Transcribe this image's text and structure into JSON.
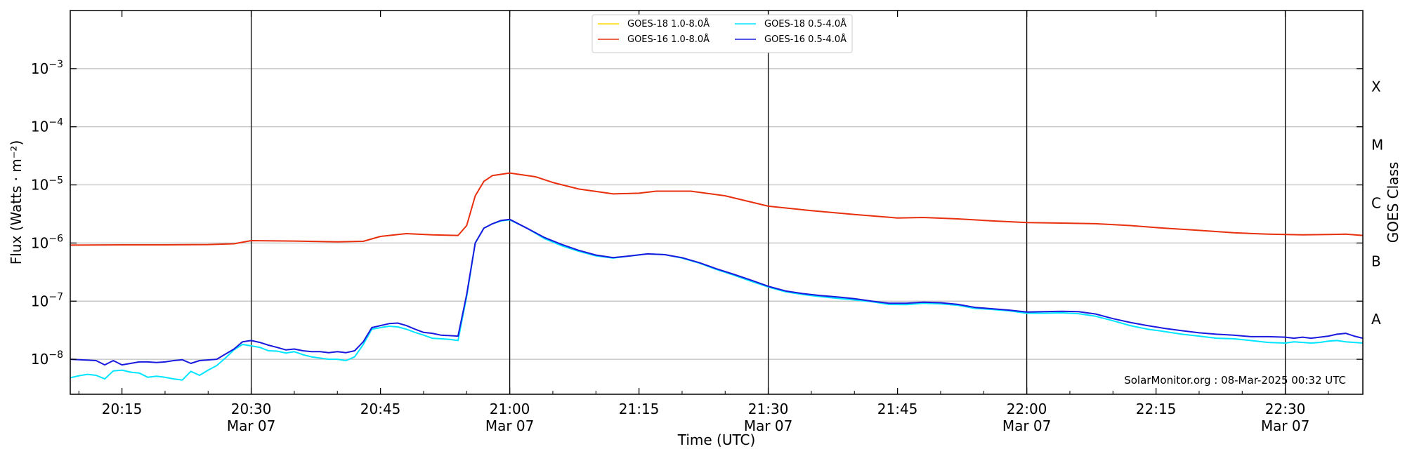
{
  "chart_data": {
    "type": "line",
    "xlabel": "Time (UTC)",
    "ylabel": "Flux (Watts · m⁻²)",
    "y2label": "GOES Class",
    "yscale": "log",
    "ylim": [
      2.5e-09,
      0.01
    ],
    "xlim": [
      "20:09",
      "22:39"
    ],
    "grid": "horizontal at decades",
    "legend_placement": "top-center",
    "credit": "SolarMonitor.org : 08-Mar-2025 00:32 UTC",
    "x_ticks": [
      {
        "time": "20:15",
        "date": ""
      },
      {
        "time": "20:30",
        "date": "Mar 07"
      },
      {
        "time": "20:45",
        "date": ""
      },
      {
        "time": "21:00",
        "date": "Mar 07"
      },
      {
        "time": "21:15",
        "date": ""
      },
      {
        "time": "21:30",
        "date": "Mar 07"
      },
      {
        "time": "21:45",
        "date": ""
      },
      {
        "time": "22:00",
        "date": "Mar 07"
      },
      {
        "time": "22:15",
        "date": ""
      },
      {
        "time": "22:30",
        "date": "Mar 07"
      }
    ],
    "y_ticks": [
      {
        "value": 1e-08,
        "base": "10",
        "exp": "−8"
      },
      {
        "value": 1e-07,
        "base": "10",
        "exp": "−7"
      },
      {
        "value": 1e-06,
        "base": "10",
        "exp": "−6"
      },
      {
        "value": 1e-05,
        "base": "10",
        "exp": "−5"
      },
      {
        "value": 0.0001,
        "base": "10",
        "exp": "−4"
      },
      {
        "value": 0.001,
        "base": "10",
        "exp": "−3"
      }
    ],
    "class_labels": [
      {
        "label": "A",
        "value": 1e-08
      },
      {
        "label": "B",
        "value": 1e-07
      },
      {
        "label": "C",
        "value": 1e-06
      },
      {
        "label": "M",
        "value": 1e-05
      },
      {
        "label": "X",
        "value": 0.0001
      }
    ],
    "series": [
      {
        "name": "GOES-18 1.0-8.0Å",
        "color": "#ffd700",
        "points": []
      },
      {
        "name": "GOES-16 1.0-8.0Å",
        "color": "#e8300f",
        "points": [
          [
            "20:09",
            9.2e-07
          ],
          [
            "20:15",
            9.3e-07
          ],
          [
            "20:20",
            9.3e-07
          ],
          [
            "20:25",
            9.4e-07
          ],
          [
            "20:28",
            9.7e-07
          ],
          [
            "20:30",
            1.1e-06
          ],
          [
            "20:35",
            1.08e-06
          ],
          [
            "20:40",
            1.05e-06
          ],
          [
            "20:43",
            1.07e-06
          ],
          [
            "20:45",
            1.3e-06
          ],
          [
            "20:48",
            1.45e-06
          ],
          [
            "20:51",
            1.38e-06
          ],
          [
            "20:54",
            1.35e-06
          ],
          [
            "20:55",
            2e-06
          ],
          [
            "20:56",
            6.5e-06
          ],
          [
            "20:57",
            1.15e-05
          ],
          [
            "20:58",
            1.45e-05
          ],
          [
            "21:00",
            1.6e-05
          ],
          [
            "21:03",
            1.38e-05
          ],
          [
            "21:05",
            1.1e-05
          ],
          [
            "21:08",
            8.5e-06
          ],
          [
            "21:12",
            7e-06
          ],
          [
            "21:15",
            7.2e-06
          ],
          [
            "21:17",
            7.8e-06
          ],
          [
            "21:21",
            7.8e-06
          ],
          [
            "21:25",
            6.5e-06
          ],
          [
            "21:30",
            4.3e-06
          ],
          [
            "21:35",
            3.6e-06
          ],
          [
            "21:40",
            3.1e-06
          ],
          [
            "21:45",
            2.7e-06
          ],
          [
            "21:48",
            2.75e-06
          ],
          [
            "21:52",
            2.6e-06
          ],
          [
            "21:56",
            2.4e-06
          ],
          [
            "22:00",
            2.25e-06
          ],
          [
            "22:04",
            2.2e-06
          ],
          [
            "22:08",
            2.15e-06
          ],
          [
            "22:12",
            2e-06
          ],
          [
            "22:16",
            1.8e-06
          ],
          [
            "22:20",
            1.65e-06
          ],
          [
            "22:24",
            1.5e-06
          ],
          [
            "22:28",
            1.42e-06
          ],
          [
            "22:32",
            1.38e-06
          ],
          [
            "22:35",
            1.4e-06
          ],
          [
            "22:37",
            1.42e-06
          ],
          [
            "22:39",
            1.35e-06
          ]
        ]
      },
      {
        "name": "GOES-18 0.5-4.0Å",
        "color": "#00e5ff",
        "points": [
          [
            "20:09",
            4.8e-09
          ],
          [
            "20:10",
            5.2e-09
          ],
          [
            "20:11",
            5.5e-09
          ],
          [
            "20:12",
            5.3e-09
          ],
          [
            "20:13",
            4.6e-09
          ],
          [
            "20:14",
            6.3e-09
          ],
          [
            "20:15",
            6.5e-09
          ],
          [
            "20:16",
            6e-09
          ],
          [
            "20:17",
            5.8e-09
          ],
          [
            "20:18",
            4.9e-09
          ],
          [
            "20:19",
            5.1e-09
          ],
          [
            "20:20",
            4.9e-09
          ],
          [
            "20:21",
            4.6e-09
          ],
          [
            "20:22",
            4.4e-09
          ],
          [
            "20:23",
            6.2e-09
          ],
          [
            "20:24",
            5.3e-09
          ],
          [
            "20:25",
            6.5e-09
          ],
          [
            "20:26",
            7.8e-09
          ],
          [
            "20:27",
            1.05e-08
          ],
          [
            "20:28",
            1.45e-08
          ],
          [
            "20:29",
            1.8e-08
          ],
          [
            "20:30",
            1.7e-08
          ],
          [
            "20:31",
            1.6e-08
          ],
          [
            "20:32",
            1.4e-08
          ],
          [
            "20:33",
            1.38e-08
          ],
          [
            "20:34",
            1.28e-08
          ],
          [
            "20:35",
            1.35e-08
          ],
          [
            "20:36",
            1.2e-08
          ],
          [
            "20:37",
            1.1e-08
          ],
          [
            "20:38",
            1.05e-08
          ],
          [
            "20:39",
            1e-08
          ],
          [
            "20:40",
            1e-08
          ],
          [
            "20:41",
            9.5e-09
          ],
          [
            "20:42",
            1.1e-08
          ],
          [
            "20:43",
            1.8e-08
          ],
          [
            "20:44",
            3.3e-08
          ],
          [
            "20:45",
            3.5e-08
          ],
          [
            "20:46",
            3.7e-08
          ],
          [
            "20:47",
            3.6e-08
          ],
          [
            "20:48",
            3.3e-08
          ],
          [
            "20:49",
            2.9e-08
          ],
          [
            "20:50",
            2.6e-08
          ],
          [
            "20:51",
            2.3e-08
          ],
          [
            "20:52",
            2.25e-08
          ],
          [
            "20:53",
            2.2e-08
          ],
          [
            "20:54",
            2.1e-08
          ],
          [
            "20:55",
            1.2e-07
          ],
          [
            "20:56",
            1e-06
          ],
          [
            "20:57",
            1.8e-06
          ],
          [
            "20:58",
            2.15e-06
          ],
          [
            "20:59",
            2.4e-06
          ],
          [
            "21:00",
            2.5e-06
          ],
          [
            "21:02",
            1.8e-06
          ],
          [
            "21:04",
            1.2e-06
          ],
          [
            "21:06",
            9e-07
          ],
          [
            "21:08",
            7.2e-07
          ],
          [
            "21:10",
            6e-07
          ],
          [
            "21:12",
            5.5e-07
          ],
          [
            "21:14",
            6e-07
          ],
          [
            "21:16",
            6.5e-07
          ],
          [
            "21:18",
            6.3e-07
          ],
          [
            "21:20",
            5.5e-07
          ],
          [
            "21:22",
            4.5e-07
          ],
          [
            "21:24",
            3.5e-07
          ],
          [
            "21:26",
            2.8e-07
          ],
          [
            "21:28",
            2.2e-07
          ],
          [
            "21:30",
            1.75e-07
          ],
          [
            "21:32",
            1.45e-07
          ],
          [
            "21:34",
            1.3e-07
          ],
          [
            "21:36",
            1.2e-07
          ],
          [
            "21:38",
            1.12e-07
          ],
          [
            "21:40",
            1.05e-07
          ],
          [
            "21:42",
            9.8e-08
          ],
          [
            "21:44",
            8.8e-08
          ],
          [
            "21:46",
            8.7e-08
          ],
          [
            "21:48",
            9.2e-08
          ],
          [
            "21:50",
            9e-08
          ],
          [
            "21:52",
            8.5e-08
          ],
          [
            "21:54",
            7.5e-08
          ],
          [
            "21:56",
            7.2e-08
          ],
          [
            "21:58",
            6.8e-08
          ],
          [
            "22:00",
            6.2e-08
          ],
          [
            "22:02",
            6.2e-08
          ],
          [
            "22:04",
            6.3e-08
          ],
          [
            "22:06",
            6.1e-08
          ],
          [
            "22:08",
            5.5e-08
          ],
          [
            "22:10",
            4.6e-08
          ],
          [
            "22:12",
            3.8e-08
          ],
          [
            "22:14",
            3.3e-08
          ],
          [
            "22:16",
            3e-08
          ],
          [
            "22:18",
            2.7e-08
          ],
          [
            "22:20",
            2.5e-08
          ],
          [
            "22:22",
            2.3e-08
          ],
          [
            "22:24",
            2.25e-08
          ],
          [
            "22:26",
            2.1e-08
          ],
          [
            "22:28",
            1.95e-08
          ],
          [
            "22:30",
            1.9e-08
          ],
          [
            "22:31",
            2e-08
          ],
          [
            "22:32",
            1.95e-08
          ],
          [
            "22:33",
            1.9e-08
          ],
          [
            "22:34",
            1.95e-08
          ],
          [
            "22:35",
            2.05e-08
          ],
          [
            "22:36",
            2.1e-08
          ],
          [
            "22:37",
            2e-08
          ],
          [
            "22:38",
            1.95e-08
          ],
          [
            "22:39",
            1.9e-08
          ]
        ]
      },
      {
        "name": "GOES-16 0.5-4.0Å",
        "color": "#1a1adf",
        "points": [
          [
            "20:09",
            1e-08
          ],
          [
            "20:12",
            9.5e-09
          ],
          [
            "20:13",
            8e-09
          ],
          [
            "20:14",
            9.5e-09
          ],
          [
            "20:15",
            8e-09
          ],
          [
            "20:16",
            8.5e-09
          ],
          [
            "20:17",
            9e-09
          ],
          [
            "20:18",
            9e-09
          ],
          [
            "20:19",
            8.8e-09
          ],
          [
            "20:20",
            9e-09
          ],
          [
            "20:21",
            9.5e-09
          ],
          [
            "20:22",
            9.8e-09
          ],
          [
            "20:23",
            8.5e-09
          ],
          [
            "20:24",
            9.5e-09
          ],
          [
            "20:26",
            1e-08
          ],
          [
            "20:28",
            1.5e-08
          ],
          [
            "20:29",
            2e-08
          ],
          [
            "20:30",
            2.1e-08
          ],
          [
            "20:31",
            1.95e-08
          ],
          [
            "20:32",
            1.75e-08
          ],
          [
            "20:33",
            1.6e-08
          ],
          [
            "20:34",
            1.45e-08
          ],
          [
            "20:35",
            1.5e-08
          ],
          [
            "20:36",
            1.4e-08
          ],
          [
            "20:37",
            1.35e-08
          ],
          [
            "20:38",
            1.35e-08
          ],
          [
            "20:39",
            1.3e-08
          ],
          [
            "20:40",
            1.35e-08
          ],
          [
            "20:41",
            1.3e-08
          ],
          [
            "20:42",
            1.4e-08
          ],
          [
            "20:43",
            2e-08
          ],
          [
            "20:44",
            3.5e-08
          ],
          [
            "20:45",
            3.8e-08
          ],
          [
            "20:46",
            4.1e-08
          ],
          [
            "20:47",
            4.2e-08
          ],
          [
            "20:48",
            3.8e-08
          ],
          [
            "20:49",
            3.3e-08
          ],
          [
            "20:50",
            2.9e-08
          ],
          [
            "20:51",
            2.8e-08
          ],
          [
            "20:52",
            2.6e-08
          ],
          [
            "20:53",
            2.55e-08
          ],
          [
            "20:54",
            2.5e-08
          ],
          [
            "20:55",
            1.3e-07
          ],
          [
            "20:56",
            1e-06
          ],
          [
            "20:57",
            1.8e-06
          ],
          [
            "20:58",
            2.15e-06
          ],
          [
            "20:59",
            2.45e-06
          ],
          [
            "21:00",
            2.55e-06
          ],
          [
            "21:02",
            1.8e-06
          ],
          [
            "21:04",
            1.25e-06
          ],
          [
            "21:06",
            9.5e-07
          ],
          [
            "21:08",
            7.5e-07
          ],
          [
            "21:10",
            6.2e-07
          ],
          [
            "21:12",
            5.6e-07
          ],
          [
            "21:14",
            6e-07
          ],
          [
            "21:16",
            6.5e-07
          ],
          [
            "21:18",
            6.3e-07
          ],
          [
            "21:20",
            5.6e-07
          ],
          [
            "21:22",
            4.6e-07
          ],
          [
            "21:24",
            3.6e-07
          ],
          [
            "21:26",
            2.9e-07
          ],
          [
            "21:28",
            2.3e-07
          ],
          [
            "21:30",
            1.8e-07
          ],
          [
            "21:32",
            1.5e-07
          ],
          [
            "21:34",
            1.35e-07
          ],
          [
            "21:36",
            1.25e-07
          ],
          [
            "21:38",
            1.18e-07
          ],
          [
            "21:40",
            1.1e-07
          ],
          [
            "21:42",
            1e-07
          ],
          [
            "21:44",
            9.2e-08
          ],
          [
            "21:46",
            9.2e-08
          ],
          [
            "21:48",
            9.6e-08
          ],
          [
            "21:50",
            9.4e-08
          ],
          [
            "21:52",
            8.8e-08
          ],
          [
            "21:54",
            7.8e-08
          ],
          [
            "21:56",
            7.4e-08
          ],
          [
            "21:58",
            7e-08
          ],
          [
            "22:00",
            6.5e-08
          ],
          [
            "22:02",
            6.6e-08
          ],
          [
            "22:04",
            6.7e-08
          ],
          [
            "22:06",
            6.6e-08
          ],
          [
            "22:08",
            6e-08
          ],
          [
            "22:10",
            5e-08
          ],
          [
            "22:12",
            4.3e-08
          ],
          [
            "22:14",
            3.8e-08
          ],
          [
            "22:16",
            3.4e-08
          ],
          [
            "22:18",
            3.1e-08
          ],
          [
            "22:20",
            2.85e-08
          ],
          [
            "22:22",
            2.7e-08
          ],
          [
            "22:24",
            2.6e-08
          ],
          [
            "22:26",
            2.45e-08
          ],
          [
            "22:28",
            2.45e-08
          ],
          [
            "22:30",
            2.4e-08
          ],
          [
            "22:31",
            2.3e-08
          ],
          [
            "22:32",
            2.4e-08
          ],
          [
            "22:33",
            2.3e-08
          ],
          [
            "22:34",
            2.4e-08
          ],
          [
            "22:35",
            2.5e-08
          ],
          [
            "22:36",
            2.7e-08
          ],
          [
            "22:37",
            2.8e-08
          ],
          [
            "22:38",
            2.5e-08
          ],
          [
            "22:39",
            2.3e-08
          ]
        ]
      }
    ]
  }
}
